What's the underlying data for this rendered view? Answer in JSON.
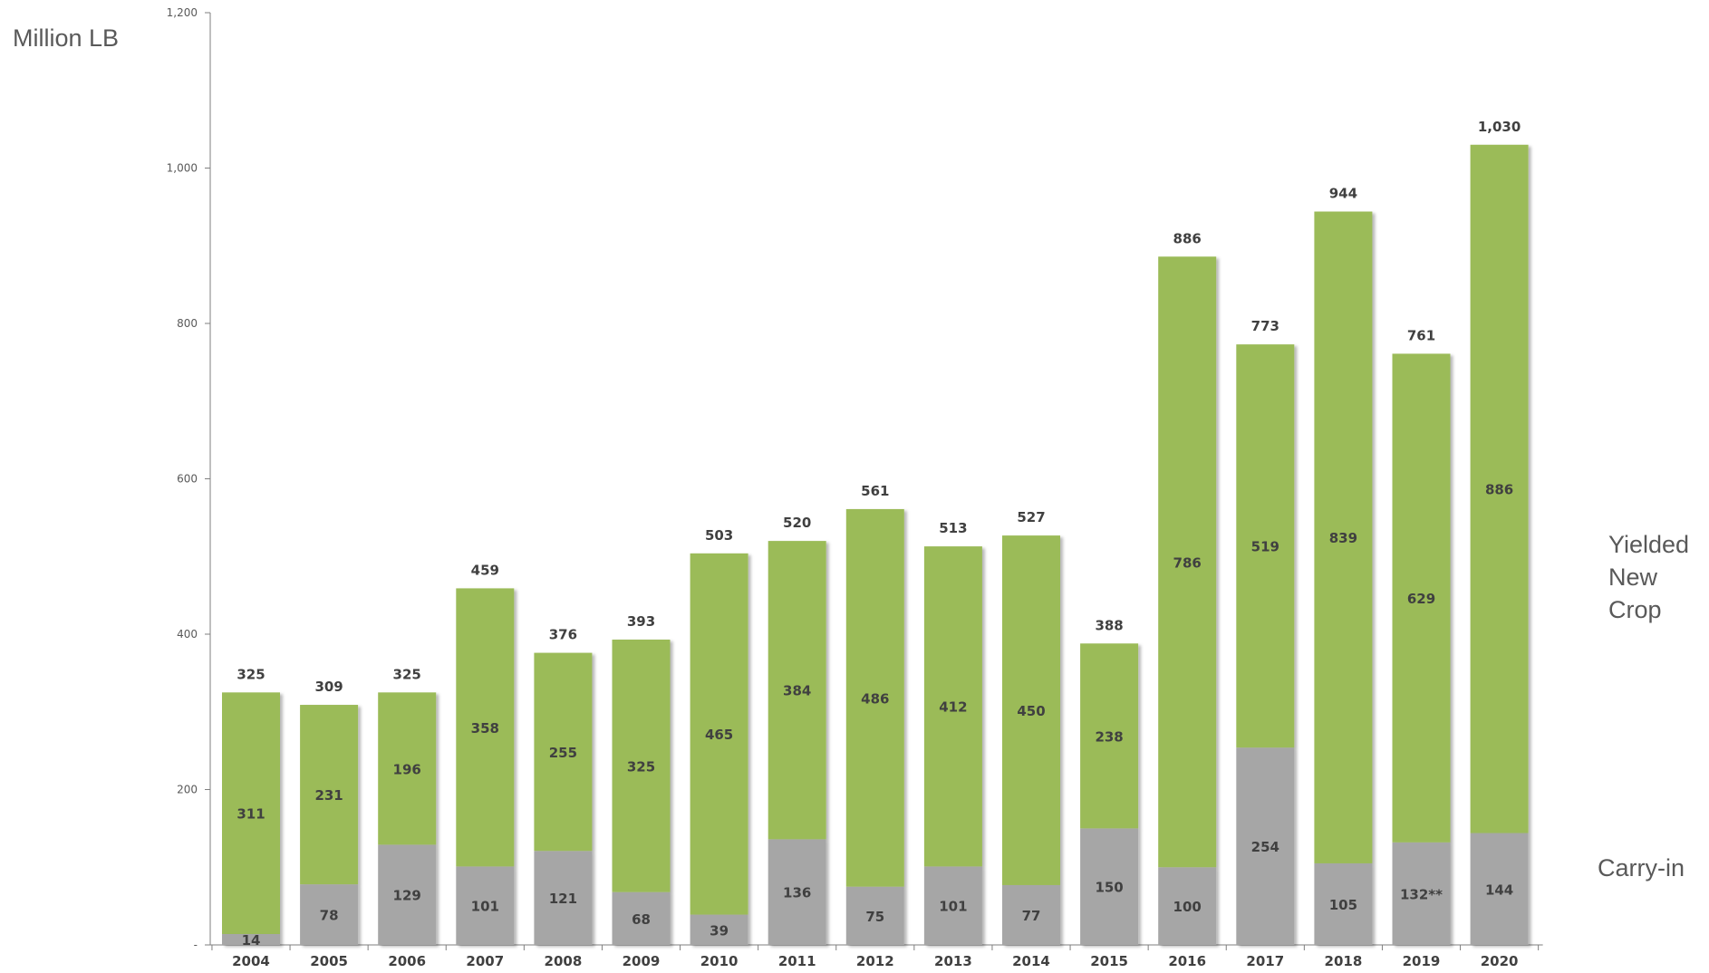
{
  "chart_data": {
    "type": "bar",
    "stacked": true,
    "ylabel": "Million LB",
    "ylim": [
      0,
      1200
    ],
    "yticks": [
      0,
      200,
      400,
      600,
      800,
      1000,
      1200
    ],
    "ytick_labels": [
      "-",
      "200",
      "400",
      "600",
      "800",
      "1,000",
      "1,200"
    ],
    "grid": false,
    "legend_placement": "right",
    "categories": [
      "2004",
      "2005",
      "2006",
      "2007",
      "2008",
      "2009",
      "2010",
      "2011",
      "2012",
      "2013",
      "2014",
      "2015",
      "2016",
      "2017",
      "2018",
      "2019",
      "2020"
    ],
    "series": [
      {
        "name": "Carry-in",
        "color": "#a6a6a6",
        "values": [
          14,
          78,
          129,
          101,
          121,
          68,
          39,
          136,
          75,
          101,
          77,
          150,
          100,
          254,
          105,
          132,
          144
        ],
        "labels": [
          "14",
          "78",
          "129",
          "101",
          "121",
          "68",
          "39",
          "136",
          "75",
          "101",
          "77",
          "150",
          "100",
          "254",
          "105",
          "132**",
          "144"
        ]
      },
      {
        "name": "Yielded New Crop",
        "color": "#9bbb59",
        "values": [
          311,
          231,
          196,
          358,
          255,
          325,
          465,
          384,
          486,
          412,
          450,
          238,
          786,
          519,
          839,
          629,
          886
        ],
        "labels": [
          "311",
          "231",
          "196",
          "358",
          "255",
          "325",
          "465",
          "384",
          "486",
          "412",
          "450",
          "238",
          "786",
          "519",
          "839",
          "629",
          "886"
        ]
      }
    ],
    "totals": [
      325,
      309,
      325,
      459,
      376,
      393,
      503,
      520,
      561,
      513,
      527,
      388,
      886,
      773,
      944,
      761,
      1030
    ],
    "total_labels": [
      "325",
      "309",
      "325",
      "459",
      "376",
      "393",
      "503",
      "520",
      "561",
      "513",
      "527",
      "388",
      "886",
      "773",
      "944",
      "761",
      "1,030"
    ]
  }
}
